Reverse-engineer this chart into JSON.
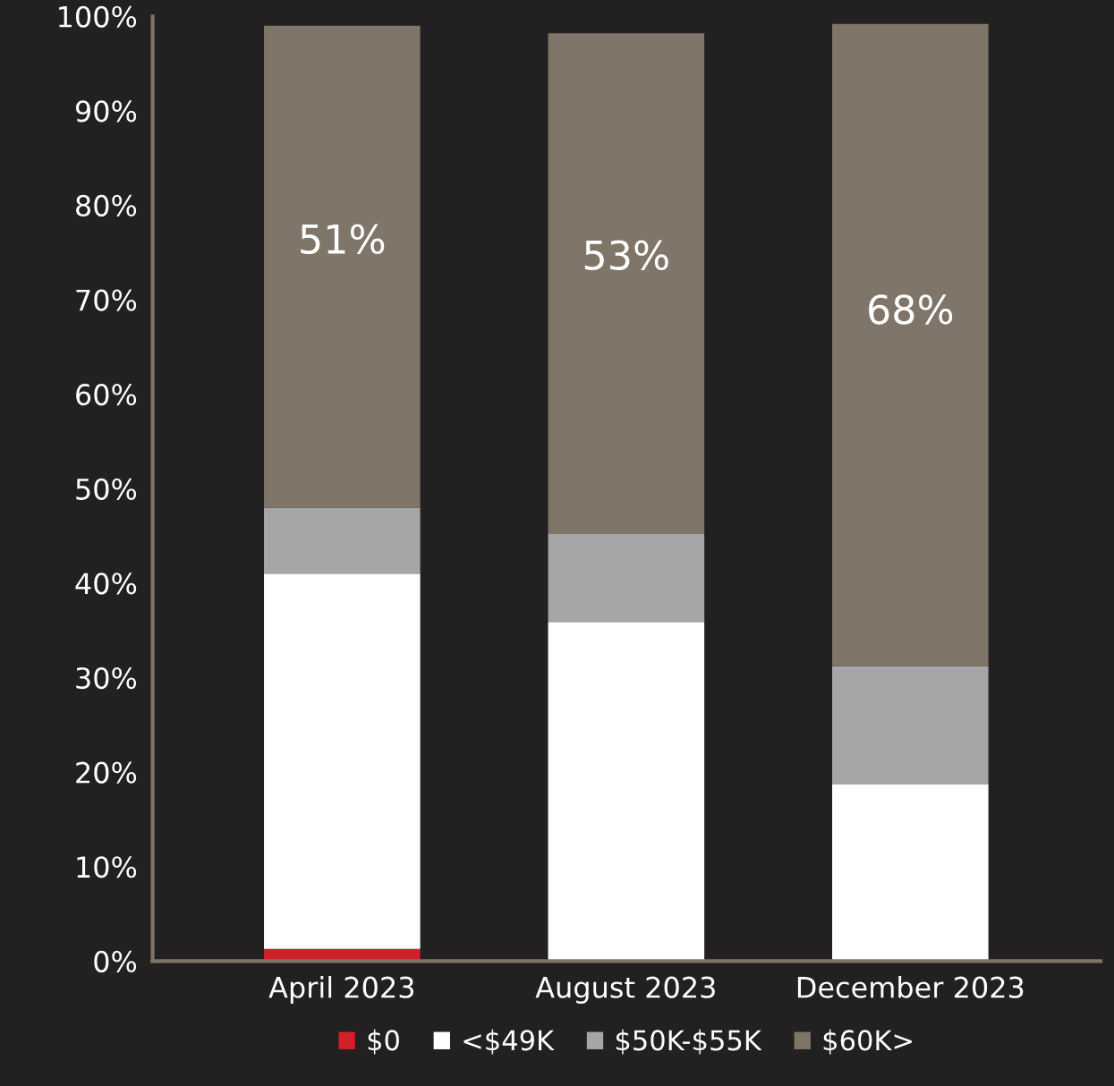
{
  "chart_data": {
    "type": "bar",
    "stacked": true,
    "categories": [
      "April 2023",
      "August 2023",
      "December 2023"
    ],
    "series": [
      {
        "name": "$0",
        "color": "#d0202a",
        "values": [
          1.3,
          0,
          0
        ]
      },
      {
        "name": "<$49K",
        "color": "#ffffff",
        "values": [
          39.7,
          35.9,
          18.7
        ]
      },
      {
        "name": "$50K-$55K",
        "color": "#a6a6a8",
        "values": [
          7.0,
          9.3,
          12.5
        ]
      },
      {
        "name": "$60K>",
        "color": "#7f7568",
        "values": [
          51,
          53,
          68
        ],
        "value_labels": [
          "51%",
          "53%",
          "68%"
        ]
      }
    ],
    "ylim": [
      0,
      100
    ],
    "yticks": [
      {
        "value": 0,
        "label": "0%"
      },
      {
        "value": 10,
        "label": "10%"
      },
      {
        "value": 20,
        "label": "20%"
      },
      {
        "value": 30,
        "label": "30%"
      },
      {
        "value": 40,
        "label": "40%"
      },
      {
        "value": 50,
        "label": "50%"
      },
      {
        "value": 60,
        "label": "60%"
      },
      {
        "value": 70,
        "label": "70%"
      },
      {
        "value": 80,
        "label": "80%"
      },
      {
        "value": 90,
        "label": "90%"
      },
      {
        "value": 100,
        "label": "100%"
      }
    ],
    "grid": false,
    "legend": "bottom"
  }
}
